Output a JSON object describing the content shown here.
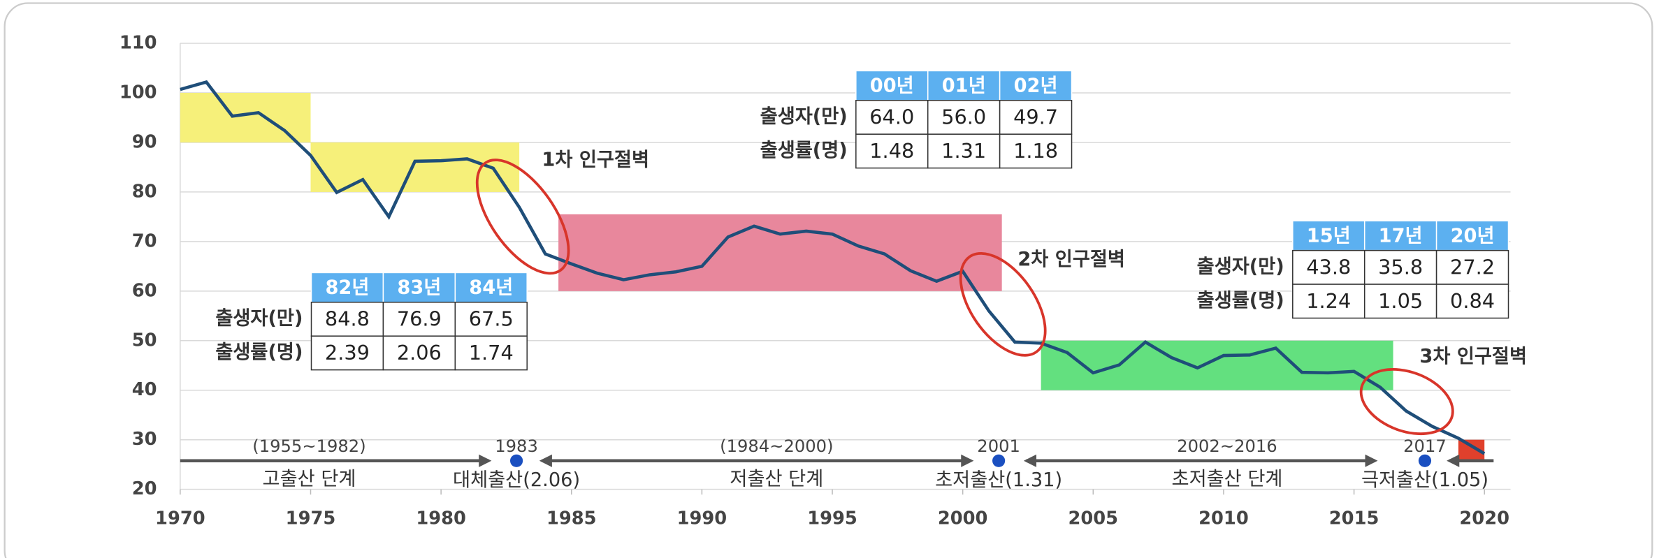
{
  "chart_data": {
    "type": "line",
    "x": [
      1970,
      1971,
      1972,
      1973,
      1974,
      1975,
      1976,
      1977,
      1978,
      1979,
      1980,
      1981,
      1982,
      1983,
      1984,
      1985,
      1986,
      1987,
      1988,
      1989,
      1990,
      1991,
      1992,
      1993,
      1994,
      1995,
      1996,
      1997,
      1998,
      1999,
      2000,
      2001,
      2002,
      2003,
      2004,
      2005,
      2006,
      2007,
      2008,
      2009,
      2010,
      2011,
      2012,
      2013,
      2014,
      2015,
      2016,
      2017,
      2018,
      2019,
      2020
    ],
    "values": [
      100.7,
      102.2,
      95.3,
      96.0,
      92.4,
      87.4,
      79.9,
      82.5,
      75.0,
      86.2,
      86.3,
      86.7,
      84.8,
      76.9,
      67.5,
      65.5,
      63.6,
      62.3,
      63.3,
      63.9,
      65.0,
      70.9,
      73.1,
      71.5,
      72.1,
      71.5,
      69.1,
      67.5,
      64.1,
      62.0,
      64.0,
      56.0,
      49.7,
      49.5,
      47.6,
      43.5,
      45.1,
      49.7,
      46.6,
      44.5,
      47.0,
      47.1,
      48.5,
      43.6,
      43.5,
      43.8,
      40.6,
      35.8,
      32.7,
      30.3,
      27.2
    ],
    "color": "#1f4e79",
    "xlim": [
      1970,
      2021
    ],
    "ylim": [
      20,
      110
    ],
    "xticks": [
      1970,
      1975,
      1980,
      1985,
      1990,
      1995,
      2000,
      2005,
      2010,
      2015,
      2020
    ],
    "yticks": [
      20,
      30,
      40,
      50,
      60,
      70,
      80,
      90,
      100,
      110
    ],
    "grid": true,
    "bands": [
      {
        "x": [
          1970,
          1975
        ],
        "y": [
          90,
          100
        ],
        "color": "#f6f07a"
      },
      {
        "x": [
          1975,
          1983
        ],
        "y": [
          80,
          90
        ],
        "color": "#f6f07a"
      },
      {
        "x": [
          1984.5,
          2001.5
        ],
        "y": [
          60,
          75.5
        ],
        "color": "#e8879c"
      },
      {
        "x": [
          2003,
          2016.5
        ],
        "y": [
          40,
          50
        ],
        "color": "#63e07f"
      },
      {
        "x": [
          2019,
          2020
        ],
        "y": [
          26,
          30
        ],
        "color": "#e0402c"
      }
    ],
    "annotations": [
      "1차 인구절벽",
      "2차 인구절벽",
      "3차 인구절벽"
    ],
    "tables": [
      {
        "columns": [
          "82년",
          "83년",
          "84년"
        ],
        "rows": [
          {
            "label": "출생자(만)",
            "cells": [
              "84.8",
              "76.9",
              "67.5"
            ]
          },
          {
            "label": "출생률(명)",
            "cells": [
              "2.39",
              "2.06",
              "1.74"
            ]
          }
        ]
      },
      {
        "columns": [
          "00년",
          "01년",
          "02년"
        ],
        "rows": [
          {
            "label": "출생자(만)",
            "cells": [
              "64.0",
              "56.0",
              "49.7"
            ]
          },
          {
            "label": "출생률(명)",
            "cells": [
              "1.48",
              "1.31",
              "1.18"
            ]
          }
        ]
      },
      {
        "columns": [
          "15년",
          "17년",
          "20년"
        ],
        "rows": [
          {
            "label": "출생자(만)",
            "cells": [
              "43.8",
              "35.8",
              "27.2"
            ]
          },
          {
            "label": "출생률(명)",
            "cells": [
              "1.24",
              "1.05",
              "0.84"
            ]
          }
        ]
      }
    ],
    "timeline": {
      "periods": [
        {
          "range": "(1955~1982)",
          "label": "고출산 단계"
        },
        {
          "range": "(1984~2000)",
          "label": "저출산 단계"
        },
        {
          "range": "2002~2016",
          "label": "초저출산 단계"
        }
      ],
      "milestones": [
        {
          "year": "1983",
          "label": "대체출산(2.06)"
        },
        {
          "year": "2001",
          "label": "초저출산(1.31)"
        },
        {
          "year": "2017",
          "label": "극저출산(1.05)"
        }
      ]
    }
  }
}
